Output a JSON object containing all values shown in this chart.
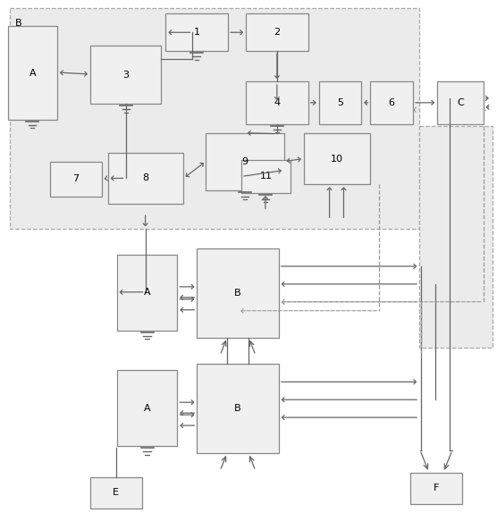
{
  "figsize": [
    5.56,
    5.74
  ],
  "dpi": 100,
  "bg": "#ffffff",
  "ec": "#888888",
  "fc": "#f0f0f0",
  "ac": "#666666",
  "dc": "#999999",
  "lw": 0.9,
  "B_region": [
    10,
    8,
    460,
    248
  ],
  "A_main": [
    8,
    28,
    55,
    105
  ],
  "blk1": [
    185,
    14,
    70,
    42
  ],
  "blk2": [
    275,
    14,
    70,
    42
  ],
  "blk3": [
    100,
    50,
    80,
    65
  ],
  "blk4": [
    275,
    90,
    70,
    48
  ],
  "blk5": [
    357,
    90,
    48,
    48
  ],
  "blk6": [
    415,
    90,
    48,
    48
  ],
  "blk7": [
    55,
    180,
    58,
    40
  ],
  "blk8": [
    120,
    170,
    85,
    58
  ],
  "blk9": [
    230,
    148,
    88,
    65
  ],
  "blk10": [
    340,
    148,
    75,
    58
  ],
  "blk11": [
    270,
    178,
    55,
    38
  ],
  "C": [
    490,
    90,
    52,
    48
  ],
  "mod1_A": [
    130,
    285,
    68,
    85
  ],
  "mod1_B": [
    220,
    278,
    92,
    100
  ],
  "mod2_A": [
    130,
    415,
    68,
    85
  ],
  "mod2_B": [
    220,
    408,
    92,
    100
  ],
  "E": [
    100,
    535,
    58,
    35
  ],
  "F": [
    460,
    530,
    58,
    35
  ]
}
